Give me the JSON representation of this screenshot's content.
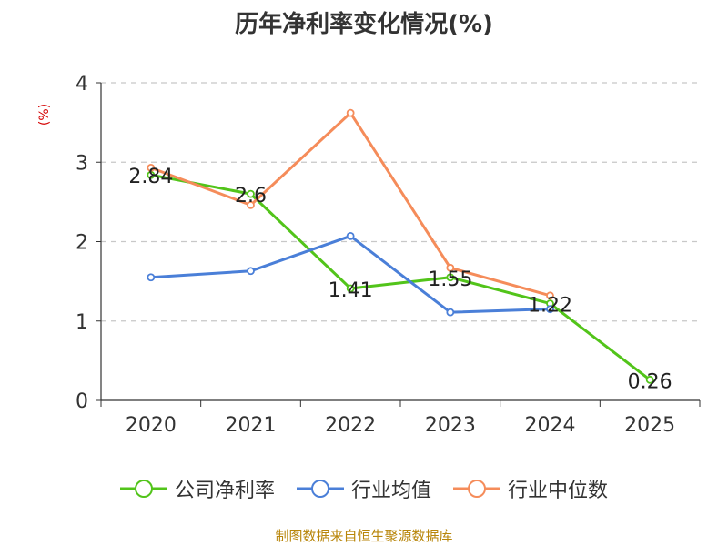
{
  "chart_data": {
    "type": "line",
    "title": "历年净利率变化情况(%)",
    "ylabel": "(%)",
    "xlabel": "",
    "categories": [
      "2020",
      "2021",
      "2022",
      "2023",
      "2024",
      "2025"
    ],
    "ylim": [
      0,
      4
    ],
    "yticks": [
      "0",
      "1",
      "2",
      "3",
      "4"
    ],
    "grid": true,
    "series": [
      {
        "name": "公司净利率",
        "color": "#52c41a",
        "values": [
          2.84,
          2.6,
          1.41,
          1.55,
          1.22,
          0.26
        ],
        "labels": [
          "2.84",
          "2.6",
          "1.41",
          "1.55",
          "1.22",
          "0.26"
        ],
        "show_labels": true
      },
      {
        "name": "行业均值",
        "color": "#4a7fd8",
        "values": [
          1.55,
          1.63,
          2.07,
          1.11,
          1.15,
          null
        ],
        "show_labels": false
      },
      {
        "name": "行业中位数",
        "color": "#f58c5a",
        "values": [
          2.93,
          2.46,
          3.62,
          1.67,
          1.32,
          null
        ],
        "show_labels": false
      }
    ],
    "legend_position": "bottom"
  },
  "source": "制图数据来自恒生聚源数据库"
}
